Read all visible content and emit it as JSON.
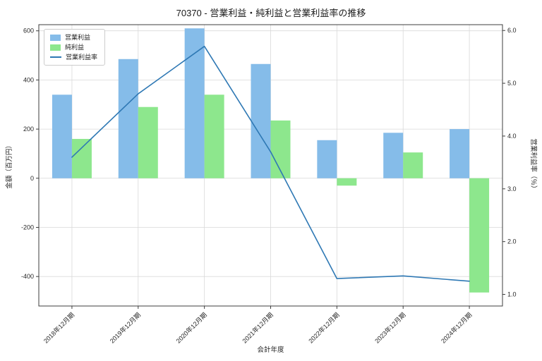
{
  "title": "70370 - 営業利益・純利益と営業利益率の推移",
  "chart_data": {
    "type": "bar+line",
    "title": "70370 - 営業利益・純利益と営業利益率の推移",
    "categories": [
      "2018年12月期",
      "2019年12月期",
      "2020年12月期",
      "2021年12月期",
      "2022年12月期",
      "2023年12月期",
      "2024年12月期"
    ],
    "series": [
      {
        "name": "営業利益",
        "type": "bar",
        "axis": "left",
        "color": "#85BCE9",
        "values": [
          340,
          485,
          610,
          465,
          155,
          185,
          200
        ]
      },
      {
        "name": "純利益",
        "type": "bar",
        "axis": "left",
        "color": "#8DE78D",
        "values": [
          160,
          290,
          340,
          235,
          -30,
          105,
          -465
        ]
      },
      {
        "name": "営業利益率",
        "type": "line",
        "axis": "right",
        "color": "#2E78B4",
        "values": [
          3.6,
          4.8,
          5.7,
          3.7,
          1.3,
          1.35,
          1.25
        ]
      }
    ],
    "xlabel": "会計年度",
    "ylabel_left": "金額（百万円）",
    "ylabel_right": "営業利益率（％）",
    "ylim_left": [
      -520,
      625
    ],
    "yticks_left": [
      -400,
      -200,
      0,
      200,
      400,
      600
    ],
    "ylim_right": [
      0.78,
      6.11
    ],
    "yticks_right": [
      1.0,
      2.0,
      3.0,
      4.0,
      5.0,
      6.0
    ],
    "grid": true,
    "legend_position": "upper left",
    "colors": {
      "grid": "#d9d9d9",
      "frame": "#3c3c3c",
      "text": "#262626",
      "background": "#ffffff"
    }
  }
}
